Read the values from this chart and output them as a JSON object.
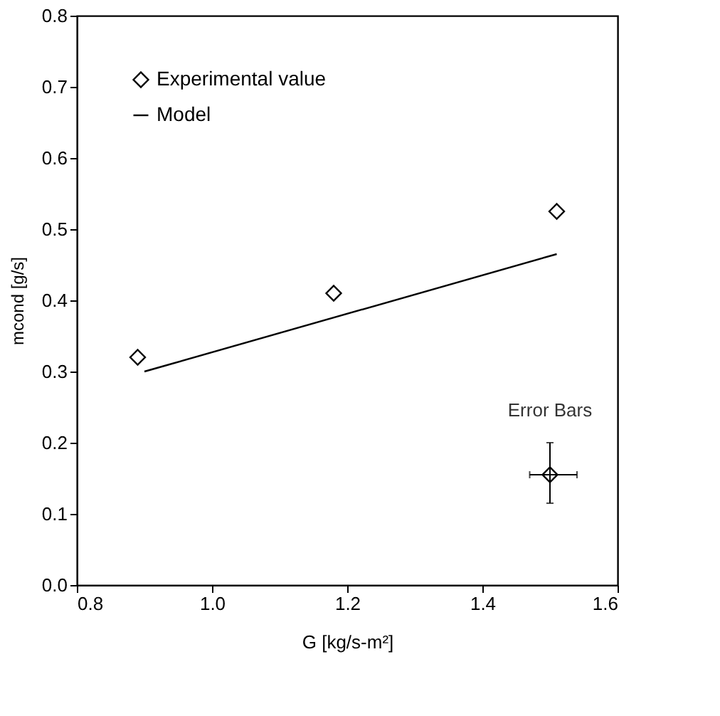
{
  "chart_data": {
    "type": "scatter",
    "xlabel": "G [kg/s-m²]",
    "ylabel": "mcond [g/s]",
    "xlim": [
      0.8,
      1.6
    ],
    "ylim": [
      0.0,
      0.8
    ],
    "xticks": [
      {
        "value": 0.8,
        "label": "0.8"
      },
      {
        "value": 1.0,
        "label": "1.0"
      },
      {
        "value": 1.2,
        "label": "1.2"
      },
      {
        "value": 1.4,
        "label": "1.4"
      },
      {
        "value": 1.6,
        "label": "1.6"
      }
    ],
    "yticks": [
      {
        "value": 0.0,
        "label": "0.0"
      },
      0.1,
      0.2,
      0.3,
      0.4,
      0.5,
      0.6,
      0.7,
      0.8
    ],
    "grid": false,
    "legend": "top left",
    "line_style": "solid",
    "series": [
      {
        "name": "Experimental value",
        "marker": "diamond",
        "color": "#000000",
        "x": [
          0.89,
          1.18,
          1.51
        ],
        "values": [
          0.32,
          0.41,
          0.525
        ]
      },
      {
        "name": "Model",
        "type": "line",
        "marker": "none",
        "color": "#000000",
        "x": [
          0.9,
          1.51
        ],
        "values": [
          0.3,
          0.465
        ]
      },
      {
        "marker": "diamond",
        "color": "#000000",
        "x": [
          1.5
        ],
        "values": [
          0.155
        ],
        "errors": [
          [
            0.115,
            0.2
          ]
        ],
        "xerrors": [
          [
            1.47,
            1.54
          ]
        ]
      }
    ],
    "annotations": [
      {
        "text": "Error Bars",
        "x": 1.5,
        "y": 0.155
      }
    ]
  }
}
